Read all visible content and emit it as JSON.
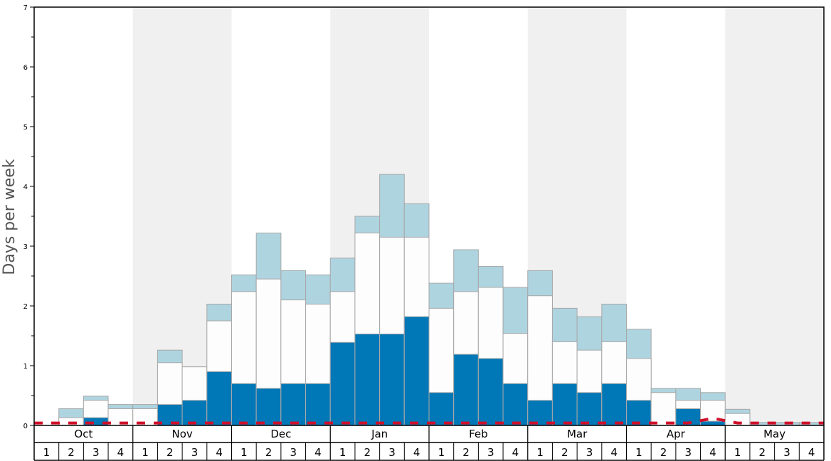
{
  "chart_data": {
    "type": "bar",
    "ylabel": "Days per week",
    "ylim": [
      0,
      7
    ],
    "yticks": [
      "0",
      "1",
      "2",
      "3",
      "4",
      "5",
      "6",
      "7"
    ],
    "months": [
      "Oct",
      "Nov",
      "Dec",
      "Jan",
      "Feb",
      "Mar",
      "Apr",
      "May"
    ],
    "week_labels": [
      "1",
      "2",
      "3",
      "4"
    ],
    "colors": {
      "dark": "#0077b6",
      "middle": "#fdfdfd",
      "light": "#aed4e0",
      "shade": "#f0f0f0",
      "average_line": "#d0102a"
    },
    "series": [
      {
        "values": [
          0,
          0,
          0.13,
          0,
          0,
          0.35,
          0.42,
          0.9,
          0.7,
          0.62,
          0.7,
          0.7,
          1.39,
          1.53,
          1.53,
          1.82,
          0.55,
          1.19,
          1.12,
          0.7,
          0.42,
          0.7,
          0.55,
          0.7,
          0.42,
          0,
          0.28,
          0.07,
          0,
          0,
          0,
          0
        ]
      },
      {
        "values": [
          0,
          0.13,
          0.42,
          0.28,
          0.28,
          1.05,
          0.98,
          1.75,
          2.24,
          2.45,
          2.1,
          2.03,
          2.24,
          3.22,
          3.15,
          3.15,
          1.96,
          2.24,
          2.31,
          1.54,
          2.17,
          1.4,
          1.26,
          1.4,
          1.12,
          0.55,
          0.42,
          0.42,
          0.2,
          0,
          0,
          0
        ]
      },
      {
        "values": [
          0,
          0.28,
          0.49,
          0.35,
          0.35,
          1.26,
          0.98,
          2.03,
          2.52,
          3.22,
          2.59,
          2.52,
          2.8,
          3.5,
          4.2,
          3.71,
          2.38,
          2.94,
          2.66,
          2.31,
          2.59,
          1.96,
          1.82,
          2.03,
          1.61,
          0.62,
          0.62,
          0.55,
          0.27,
          0.05,
          0.05,
          0.05
        ]
      }
    ],
    "average_line": [
      0.04,
      0.04,
      0.04,
      0.04,
      0.04,
      0.04,
      0.04,
      0.04,
      0.04,
      0.04,
      0.04,
      0.04,
      0.04,
      0.04,
      0.04,
      0.04,
      0.04,
      0.04,
      0.04,
      0.04,
      0.04,
      0.04,
      0.04,
      0.04,
      0.04,
      0.04,
      0.04,
      0.12,
      0.04,
      0.04,
      0.04,
      0.04
    ]
  }
}
